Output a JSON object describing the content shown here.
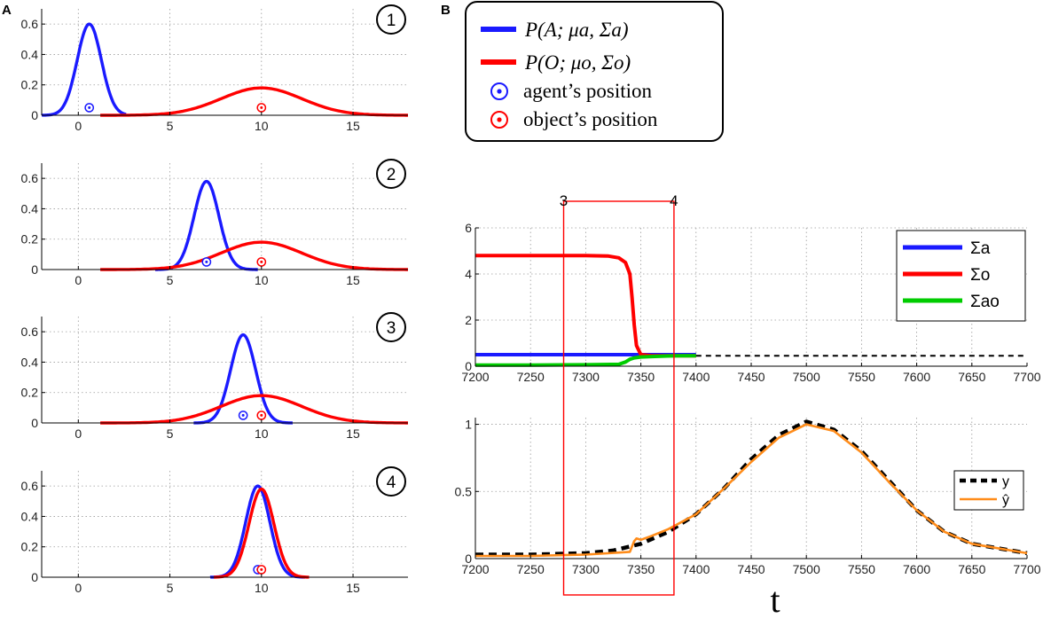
{
  "panel_labels": {
    "a": "A",
    "b": "B"
  },
  "legend_top": {
    "items": [
      {
        "text": "P(A; μa, Σa)",
        "kind": "line",
        "color": "#1a1aff"
      },
      {
        "text": "P(O; μo, Σo)",
        "kind": "line",
        "color": "#ff0000"
      },
      {
        "text": "agent’s position",
        "kind": "marker",
        "color": "#1a1aff"
      },
      {
        "text": "object’s position",
        "kind": "marker",
        "color": "#ff0000"
      }
    ]
  },
  "red_box": {
    "x_start": 7280,
    "x_end": 7380,
    "label_left": "3",
    "label_right": "4"
  },
  "x_label": "t",
  "chart_data": [
    {
      "id": "A1",
      "type": "line",
      "step": "1",
      "xlim": [
        -2,
        18
      ],
      "ylim": [
        0,
        0.7
      ],
      "xticks": [
        0,
        5,
        10,
        15
      ],
      "xtick_labels": [
        "0",
        "5",
        "10",
        "15"
      ],
      "yticks": [
        0,
        0.2,
        0.4,
        0.6
      ],
      "ytick_labels": [
        "0",
        "0.2",
        "0.4",
        "0.6"
      ],
      "grid": true,
      "series": [
        {
          "name": "P(A; μa, Σa)",
          "color": "#1a1aff",
          "mean": 0.6,
          "peak": 0.6,
          "sd": 0.66,
          "x_range": [
            -2,
            2.6
          ]
        },
        {
          "name": "P(O; μo, Σo)",
          "color": "#ff0000",
          "mean": 10,
          "peak": 0.18,
          "sd": 2.2,
          "x_range": [
            1.2,
            18
          ]
        }
      ],
      "markers": [
        {
          "name": "agent’s position",
          "x": 0.6,
          "y": 0.05,
          "color": "#1a1aff"
        },
        {
          "name": "object’s position",
          "x": 10,
          "y": 0.05,
          "color": "#ff0000"
        }
      ]
    },
    {
      "id": "A2",
      "type": "line",
      "step": "2",
      "xlim": [
        -2,
        18
      ],
      "ylim": [
        0,
        0.7
      ],
      "xticks": [
        0,
        5,
        10,
        15
      ],
      "xtick_labels": [
        "0",
        "5",
        "10",
        "15"
      ],
      "yticks": [
        0,
        0.2,
        0.4,
        0.6
      ],
      "ytick_labels": [
        "0",
        "0.2",
        "0.4",
        "0.6"
      ],
      "grid": true,
      "series": [
        {
          "name": "P(A; μa, Σa)",
          "color": "#1a1aff",
          "mean": 7,
          "peak": 0.58,
          "sd": 0.68,
          "x_range": [
            4.2,
            9.8
          ]
        },
        {
          "name": "P(O; μo, Σo)",
          "color": "#ff0000",
          "mean": 10,
          "peak": 0.18,
          "sd": 2.2,
          "x_range": [
            1.2,
            18
          ]
        }
      ],
      "markers": [
        {
          "name": "agent’s position",
          "x": 7,
          "y": 0.05,
          "color": "#1a1aff"
        },
        {
          "name": "object’s position",
          "x": 10,
          "y": 0.05,
          "color": "#ff0000"
        }
      ]
    },
    {
      "id": "A3",
      "type": "line",
      "step": "3",
      "xlim": [
        -2,
        18
      ],
      "ylim": [
        0,
        0.7
      ],
      "xticks": [
        0,
        5,
        10,
        15
      ],
      "xtick_labels": [
        "0",
        "5",
        "10",
        "15"
      ],
      "yticks": [
        0,
        0.2,
        0.4,
        0.6
      ],
      "ytick_labels": [
        "0",
        "0.2",
        "0.4",
        "0.6"
      ],
      "grid": true,
      "series": [
        {
          "name": "P(A; μa, Σa)",
          "color": "#1a1aff",
          "mean": 9,
          "peak": 0.58,
          "sd": 0.68,
          "x_range": [
            6.3,
            11.7
          ]
        },
        {
          "name": "P(O; μo, Σo)",
          "color": "#ff0000",
          "mean": 10,
          "peak": 0.18,
          "sd": 2.2,
          "x_range": [
            1.2,
            18
          ]
        }
      ],
      "markers": [
        {
          "name": "agent’s position",
          "x": 9,
          "y": 0.05,
          "color": "#1a1aff"
        },
        {
          "name": "object’s position",
          "x": 10,
          "y": 0.05,
          "color": "#ff0000"
        }
      ]
    },
    {
      "id": "A4",
      "type": "line",
      "step": "4",
      "xlim": [
        -2,
        18
      ],
      "ylim": [
        0,
        0.7
      ],
      "xticks": [
        0,
        5,
        10,
        15
      ],
      "xtick_labels": [
        "0",
        "5",
        "10",
        "15"
      ],
      "yticks": [
        0,
        0.2,
        0.4,
        0.6
      ],
      "ytick_labels": [
        "0",
        "0.2",
        "0.4",
        "0.6"
      ],
      "grid": true,
      "series": [
        {
          "name": "P(A; μa, Σa)",
          "color": "#1a1aff",
          "mean": 9.8,
          "peak": 0.6,
          "sd": 0.66,
          "x_range": [
            7.2,
            12.4
          ]
        },
        {
          "name": "P(O; μo, Σo)",
          "color": "#ff0000",
          "mean": 10,
          "peak": 0.58,
          "sd": 0.68,
          "x_range": [
            7.4,
            12.6
          ]
        }
      ],
      "markers": [
        {
          "name": "agent’s position",
          "x": 9.8,
          "y": 0.05,
          "color": "#1a1aff"
        },
        {
          "name": "object’s position",
          "x": 10,
          "y": 0.05,
          "color": "#ff0000"
        }
      ]
    },
    {
      "id": "B1",
      "type": "line",
      "xlim": [
        7200,
        7700
      ],
      "ylim": [
        0,
        6
      ],
      "xticks": [
        7200,
        7250,
        7300,
        7350,
        7400,
        7450,
        7500,
        7550,
        7600,
        7650,
        7700
      ],
      "xtick_labels": [
        "7200",
        "7250",
        "7300",
        "7350",
        "7400",
        "7450",
        "7500",
        "7550",
        "7600",
        "7650",
        "7700"
      ],
      "yticks": [
        0,
        2,
        4,
        6
      ],
      "ytick_labels": [
        "0",
        "2",
        "4",
        "6"
      ],
      "grid": true,
      "legend": [
        "Σa",
        "Σo",
        "Σao"
      ],
      "series": [
        {
          "name": "Σa",
          "color": "#1a1aff",
          "x": [
            7200,
            7250,
            7300,
            7340,
            7350,
            7360,
            7380,
            7400
          ],
          "y": [
            0.5,
            0.5,
            0.5,
            0.5,
            0.5,
            0.5,
            0.5,
            0.5
          ]
        },
        {
          "name": "Σo",
          "color": "#ff0000",
          "x": [
            7200,
            7250,
            7300,
            7320,
            7330,
            7336,
            7340,
            7342,
            7344,
            7346,
            7350,
            7360,
            7380,
            7400
          ],
          "y": [
            4.8,
            4.8,
            4.8,
            4.78,
            4.7,
            4.5,
            4.0,
            3.0,
            1.8,
            0.9,
            0.5,
            0.45,
            0.45,
            0.45
          ]
        },
        {
          "name": "Σao",
          "color": "#00cc00",
          "x": [
            7200,
            7250,
            7300,
            7330,
            7336,
            7340,
            7344,
            7350,
            7360,
            7380,
            7400
          ],
          "y": [
            0.05,
            0.05,
            0.06,
            0.08,
            0.18,
            0.3,
            0.36,
            0.4,
            0.42,
            0.45,
            0.45
          ]
        },
        {
          "name": "continuation",
          "color": "#000000",
          "dashed": true,
          "x": [
            7400,
            7700
          ],
          "y": [
            0.45,
            0.45
          ]
        }
      ]
    },
    {
      "id": "B2",
      "type": "line",
      "xlim": [
        7200,
        7700
      ],
      "ylim": [
        0,
        1.05
      ],
      "xticks": [
        7200,
        7250,
        7300,
        7350,
        7400,
        7450,
        7500,
        7550,
        7600,
        7650,
        7700
      ],
      "xtick_labels": [
        "7200",
        "7250",
        "7300",
        "7350",
        "7400",
        "7450",
        "7500",
        "7550",
        "7600",
        "7650",
        "7700"
      ],
      "yticks": [
        0,
        0.5,
        1
      ],
      "ytick_labels": [
        "0",
        "0.5",
        "1"
      ],
      "grid": true,
      "xlabel": "t",
      "legend": [
        "y",
        "ŷ"
      ],
      "series": [
        {
          "name": "y",
          "color": "#000000",
          "dashed": true,
          "x": [
            7200,
            7250,
            7300,
            7325,
            7350,
            7375,
            7400,
            7425,
            7450,
            7475,
            7500,
            7525,
            7550,
            7575,
            7600,
            7625,
            7650,
            7700
          ],
          "y": [
            0.03,
            0.03,
            0.04,
            0.06,
            0.11,
            0.2,
            0.33,
            0.52,
            0.74,
            0.92,
            1.02,
            0.96,
            0.8,
            0.58,
            0.36,
            0.2,
            0.11,
            0.04
          ]
        },
        {
          "name": "ŷ",
          "color": "#ff8c1a",
          "x": [
            7200,
            7250,
            7300,
            7340,
            7344,
            7346,
            7350,
            7360,
            7375,
            7400,
            7425,
            7450,
            7475,
            7500,
            7525,
            7550,
            7575,
            7600,
            7625,
            7650,
            7700
          ],
          "y": [
            0.02,
            0.02,
            0.03,
            0.05,
            0.13,
            0.15,
            0.14,
            0.17,
            0.22,
            0.33,
            0.52,
            0.72,
            0.9,
            1.0,
            0.95,
            0.79,
            0.57,
            0.36,
            0.2,
            0.11,
            0.04
          ]
        }
      ]
    }
  ]
}
